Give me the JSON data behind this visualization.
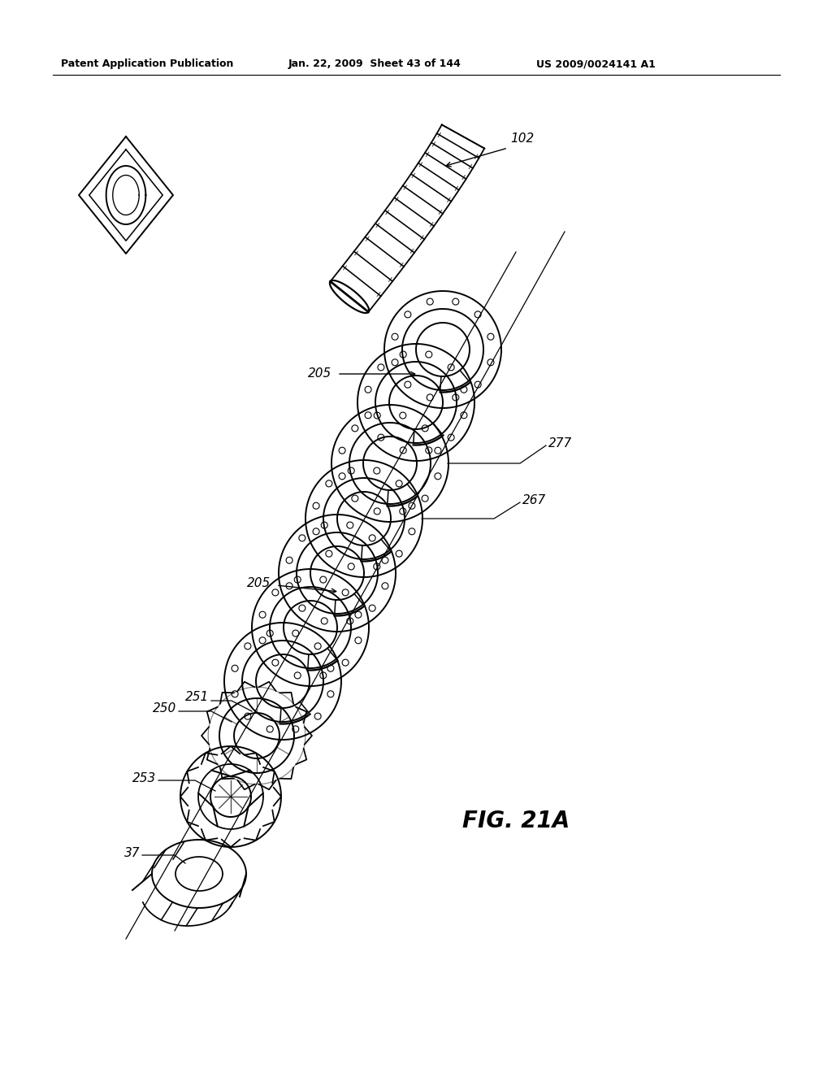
{
  "header_left": "Patent Application Publication",
  "header_mid": "Jan. 22, 2009  Sheet 43 of 144",
  "header_right": "US 2009/0024141 A1",
  "figure_label": "FIG. 21A",
  "bg_color": "#ffffff",
  "line_color": "#000000",
  "lw_main": 1.4,
  "lw_thin": 0.8,
  "lw_thick": 2.0
}
